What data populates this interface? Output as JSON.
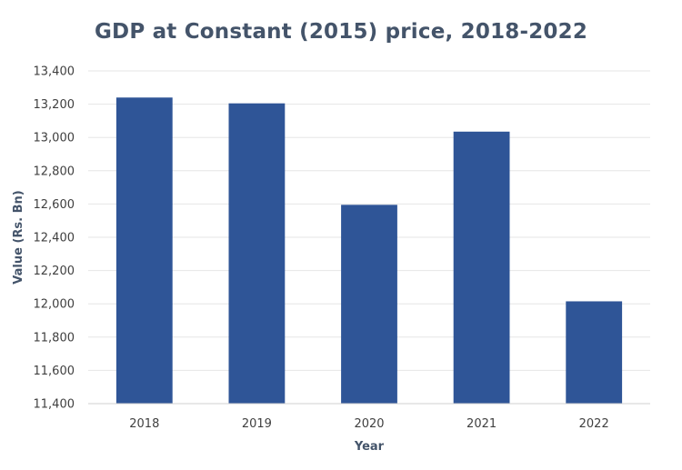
{
  "chart_data": {
    "type": "bar",
    "title": "GDP at Constant (2015) price, 2018-2022",
    "xlabel": "Year",
    "ylabel": "Value (Rs. Bn)",
    "categories": [
      "2018",
      "2019",
      "2020",
      "2021",
      "2022"
    ],
    "values": [
      13240,
      13205,
      12595,
      13035,
      12015
    ],
    "ylim": [
      11400,
      13400
    ],
    "yticks": [
      11400,
      11600,
      11800,
      12000,
      12200,
      12400,
      12600,
      12800,
      13000,
      13200,
      13400
    ],
    "ytick_labels": [
      "11,400",
      "11,600",
      "11,800",
      "12,000",
      "12,200",
      "12,400",
      "12,600",
      "12,800",
      "13,000",
      "13,200",
      "13,400"
    ],
    "grid": true,
    "bar_color": "#2f5597",
    "grid_color": "#e6e6e6",
    "axis_color": "#d0d0d0"
  }
}
